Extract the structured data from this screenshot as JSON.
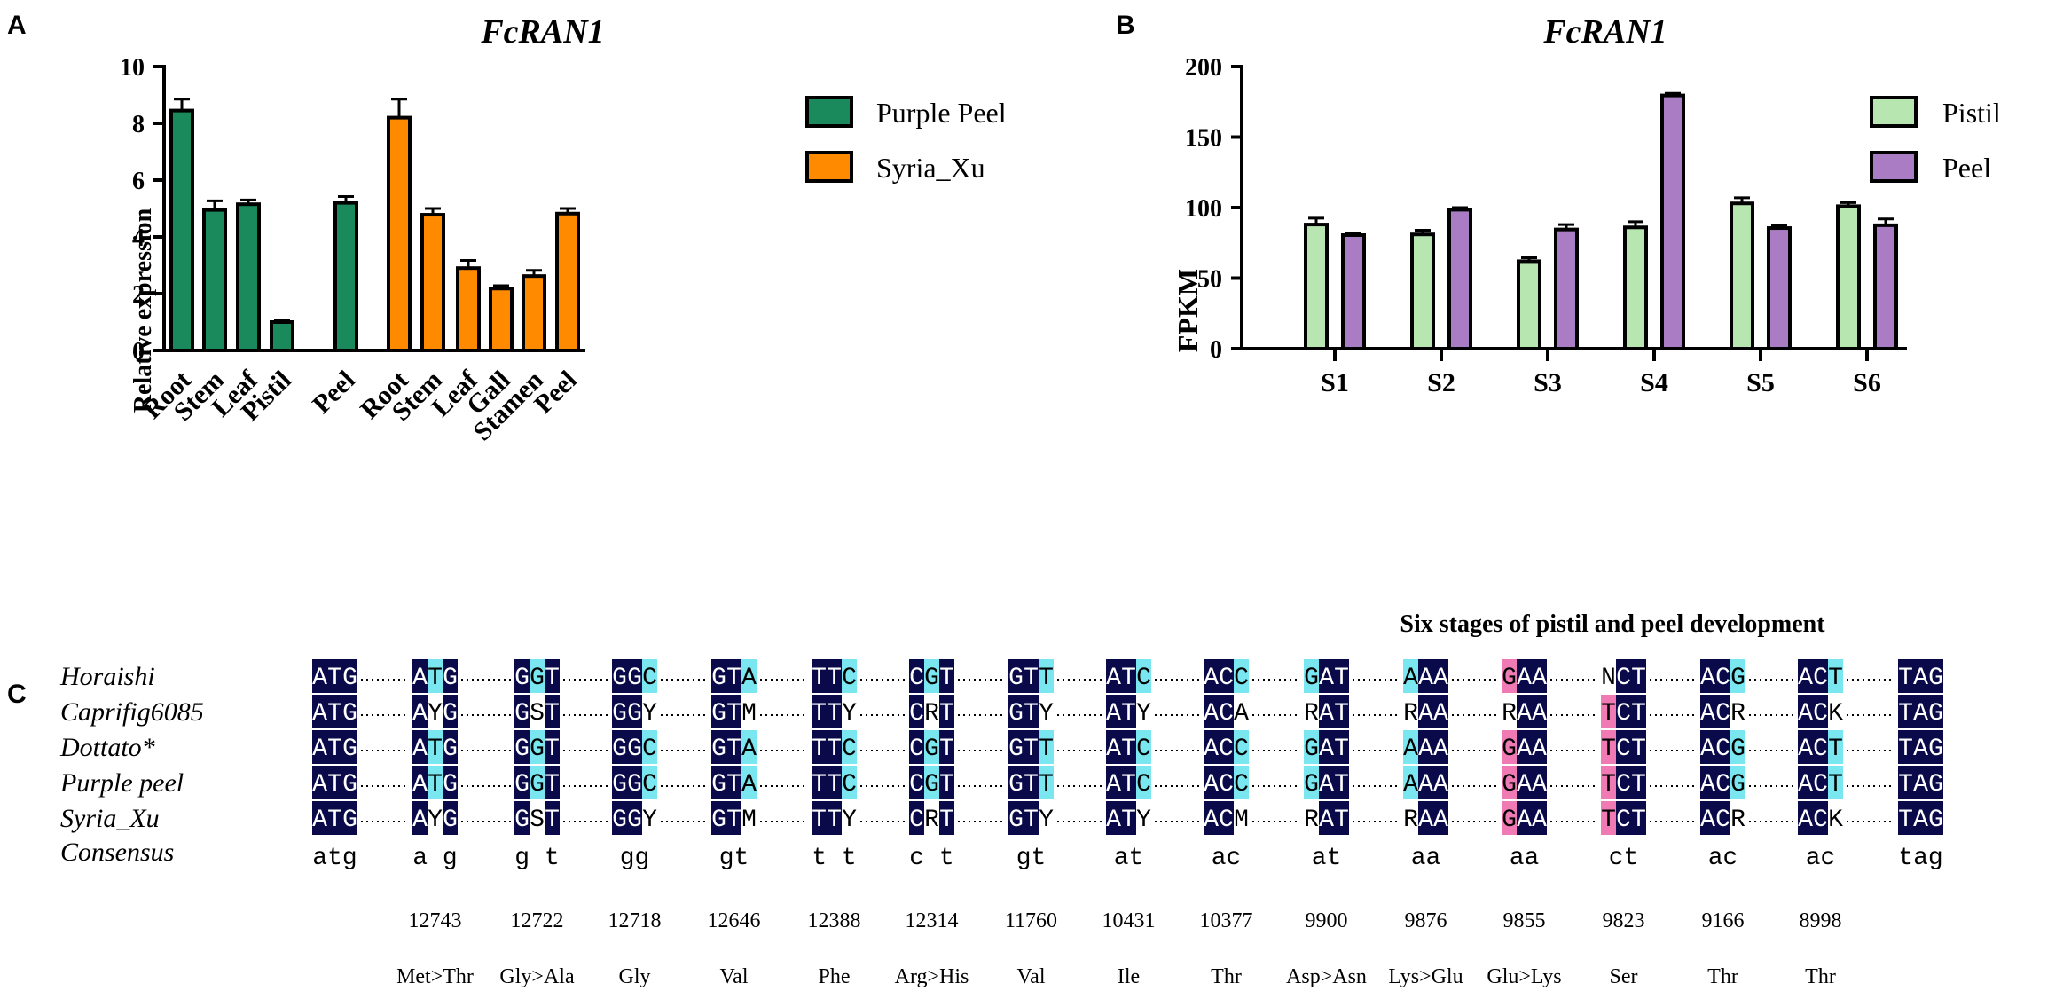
{
  "chart_data": [
    {
      "panel": "A",
      "type": "bar",
      "title": "FcRAN1",
      "xlabel": "",
      "ylabel": "Relative expression",
      "ylim": [
        0,
        10
      ],
      "yticks": [
        0,
        2,
        4,
        6,
        8,
        10
      ],
      "series": [
        {
          "name": "Purple Peel",
          "color": "#1a8a5c",
          "categories": [
            "Root",
            "Stem",
            "Leaf",
            "Pistil",
            "Peel"
          ],
          "values": [
            8.45,
            4.95,
            5.15,
            1.0,
            5.2
          ],
          "errors": [
            0.4,
            0.32,
            0.15,
            0.08,
            0.22
          ]
        },
        {
          "name": "Syria_Xu",
          "color": "#ff8a00",
          "categories": [
            "Root",
            "Stem",
            "Leaf",
            "Gall",
            "Stamen",
            "Peel"
          ],
          "values": [
            8.2,
            4.78,
            2.9,
            2.18,
            2.62,
            4.82
          ],
          "errors": [
            0.65,
            0.22,
            0.27,
            0.1,
            0.2,
            0.18
          ]
        }
      ]
    },
    {
      "panel": "B",
      "type": "bar",
      "title": "FcRAN1",
      "xlabel": "Six stages of pistil and peel development",
      "ylabel": "FPKM",
      "ylim": [
        0,
        200
      ],
      "yticks": [
        0,
        50,
        100,
        150,
        200
      ],
      "categories": [
        "S1",
        "S2",
        "S3",
        "S4",
        "S5",
        "S6"
      ],
      "series": [
        {
          "name": "Pistil",
          "color": "#b8e6b0",
          "values": [
            88,
            81,
            62,
            86,
            103,
            101
          ],
          "errors": [
            4.5,
            3,
            2.5,
            4,
            4,
            2.5
          ]
        },
        {
          "name": "Peel",
          "color": "#a97cc4",
          "values": [
            80.5,
            98.5,
            84.5,
            179.5,
            85.5,
            87.5
          ],
          "errors": [
            1,
            1.5,
            3.5,
            1.5,
            2,
            4.5
          ]
        }
      ]
    }
  ],
  "panel_c": {
    "letter": "C",
    "sequences": [
      "Horaishi",
      "Caprifig6085",
      "Dottato*",
      "Purple peel",
      "Syria_Xu",
      "Consensus"
    ],
    "blocks": [
      {
        "rows": [
          "ATG",
          "ATG",
          "ATG",
          "ATG",
          "ATG"
        ],
        "consensus": "atg",
        "pos": "",
        "aa": ""
      },
      {
        "rows": [
          "ATG",
          "AYG",
          "ATG",
          "ATG",
          "AYG"
        ],
        "consensus": "a g",
        "pos": "12743",
        "aa": "Met>Thr"
      },
      {
        "rows": [
          "GGT",
          "GST",
          "GGT",
          "GGT",
          "GST"
        ],
        "consensus": "g t",
        "pos": "12722",
        "aa": "Gly>Ala"
      },
      {
        "rows": [
          "GGC",
          "GGY",
          "GGC",
          "GGC",
          "GGY"
        ],
        "consensus": "gg",
        "pos": "12718",
        "aa": "Gly"
      },
      {
        "rows": [
          "GTA",
          "GTM",
          "GTA",
          "GTA",
          "GTM"
        ],
        "consensus": "gt",
        "pos": "12646",
        "aa": "Val"
      },
      {
        "rows": [
          "TTC",
          "TTY",
          "TTC",
          "TTC",
          "TTY"
        ],
        "consensus": "t t",
        "pos": "12388",
        "aa": "Phe"
      },
      {
        "rows": [
          "CGT",
          "CRT",
          "CGT",
          "CGT",
          "CRT"
        ],
        "consensus": "c t",
        "pos": "12314",
        "aa": "Arg>His"
      },
      {
        "rows": [
          "GTT",
          "GTY",
          "GTT",
          "GTT",
          "GTY"
        ],
        "consensus": "gt",
        "pos": "11760",
        "aa": "Val"
      },
      {
        "rows": [
          "ATC",
          "ATY",
          "ATC",
          "ATC",
          "ATY"
        ],
        "consensus": "at",
        "pos": "10431",
        "aa": "Ile"
      },
      {
        "rows": [
          "ACC",
          "ACA",
          "ACC",
          "ACC",
          "ACM"
        ],
        "consensus": "ac",
        "pos": "10377",
        "aa": "Thr"
      },
      {
        "rows": [
          "GAT",
          "RAT",
          "GAT",
          "GAT",
          "RAT"
        ],
        "consensus": "at",
        "pos": "9900",
        "aa": "Asp>Asn"
      },
      {
        "rows": [
          "AAA",
          "RAA",
          "AAA",
          "AAA",
          "RAA"
        ],
        "consensus": "aa",
        "pos": "9876",
        "aa": "Lys>Glu"
      },
      {
        "rows": [
          "GAA",
          "RAA",
          "GAA",
          "GAA",
          "GAA"
        ],
        "consensus": "aa",
        "pos": "9855",
        "aa": "Glu>Lys"
      },
      {
        "rows": [
          "NCT",
          "TCT",
          "TCT",
          "TCT",
          "TCT"
        ],
        "consensus": "ct",
        "pos": "9823",
        "aa": "Ser"
      },
      {
        "rows": [
          "ACG",
          "ACR",
          "ACG",
          "ACG",
          "ACR"
        ],
        "consensus": "ac",
        "pos": "9166",
        "aa": "Thr"
      },
      {
        "rows": [
          "ACT",
          "ACK",
          "ACT",
          "ACT",
          "ACK"
        ],
        "consensus": "ac",
        "pos": "8998",
        "aa": "Thr"
      },
      {
        "rows": [
          "TAG",
          "TAG",
          "TAG",
          "TAG",
          "TAG"
        ],
        "consensus": "tag",
        "pos": "",
        "aa": ""
      }
    ],
    "colors": {
      "identical": "#0a0a4a",
      "similar": "#79e6f0",
      "pink": "#f07ab4"
    }
  }
}
